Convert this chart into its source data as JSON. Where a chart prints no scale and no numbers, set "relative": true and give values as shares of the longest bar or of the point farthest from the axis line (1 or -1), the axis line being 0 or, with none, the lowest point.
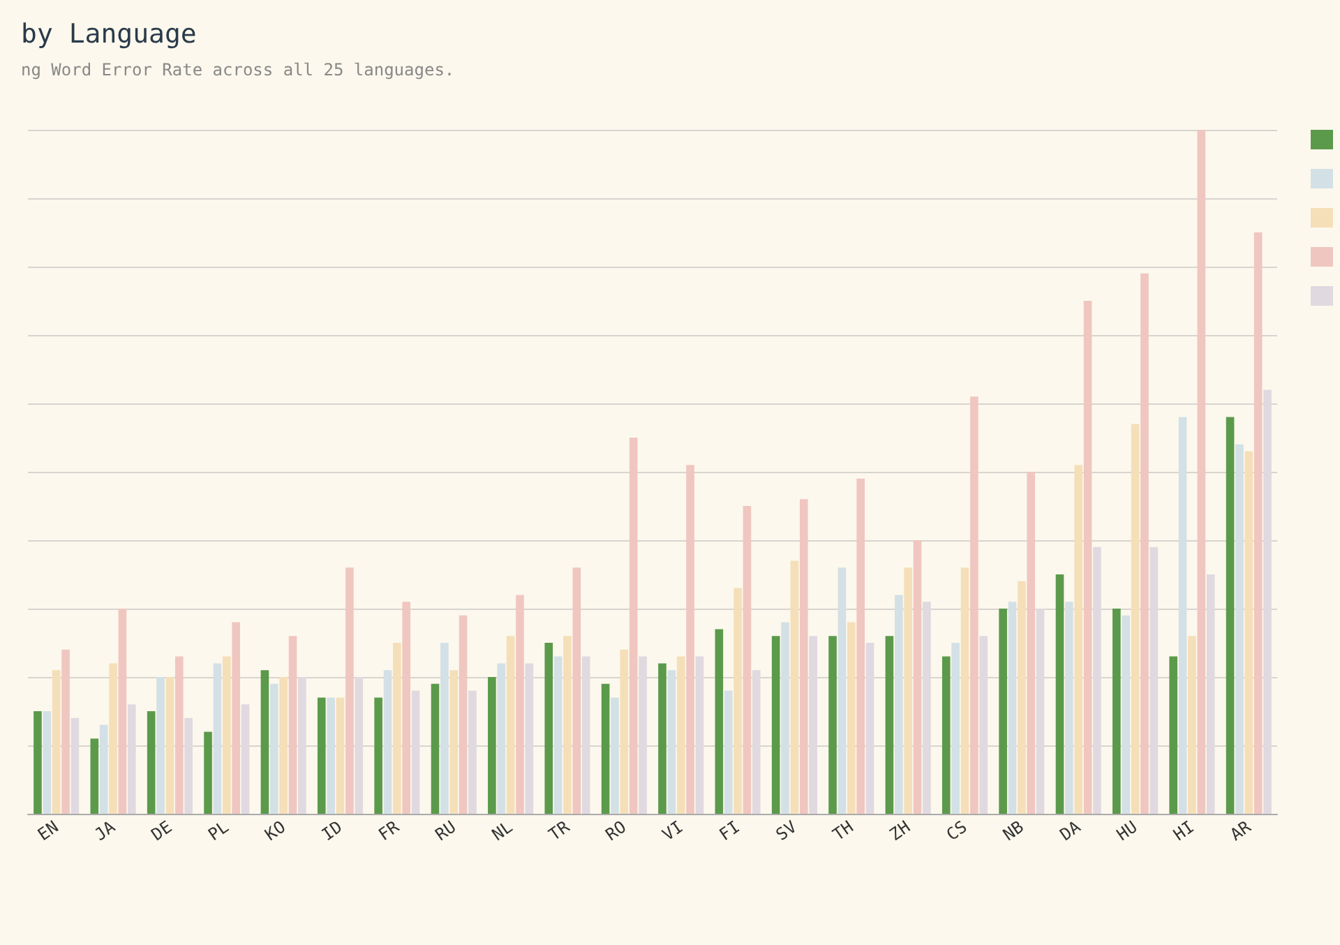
{
  "chart_data": {
    "type": "bar",
    "title": "by Language",
    "subtitle": "ng Word Error Rate across all 25 languages.",
    "categories": [
      "EN",
      "JA",
      "DE",
      "PL",
      "KO",
      "ID",
      "FR",
      "RU",
      "NL",
      "TR",
      "RO",
      "VI",
      "FI",
      "SV",
      "TH",
      "ZH",
      "CS",
      "NB",
      "DA",
      "HU",
      "HI",
      "AR"
    ],
    "relative": true,
    "grid": "y",
    "series": [
      {
        "color": "#5b9a4b",
        "values": [
          0.15,
          0.11,
          0.15,
          0.12,
          0.21,
          0.17,
          0.17,
          0.19,
          0.2,
          0.25,
          0.19,
          0.22,
          0.27,
          0.26,
          0.26,
          0.26,
          0.23,
          0.3,
          0.35,
          0.3,
          0.23,
          0.58
        ]
      },
      {
        "color": "#d3e0e6",
        "values": [
          0.15,
          0.13,
          0.2,
          0.22,
          0.19,
          0.17,
          0.21,
          0.25,
          0.22,
          0.23,
          0.17,
          0.21,
          0.18,
          0.28,
          0.36,
          0.32,
          0.25,
          0.31,
          0.31,
          0.29,
          0.58,
          0.54
        ]
      },
      {
        "color": "#f5dfb8",
        "values": [
          0.21,
          0.22,
          0.2,
          0.23,
          0.2,
          0.17,
          0.25,
          0.21,
          0.26,
          0.26,
          0.24,
          0.23,
          0.33,
          0.37,
          0.28,
          0.36,
          0.36,
          0.34,
          0.51,
          0.57,
          0.26,
          0.53
        ]
      },
      {
        "color": "#f0c6c0",
        "values": [
          0.24,
          0.3,
          0.23,
          0.28,
          0.26,
          0.36,
          0.31,
          0.29,
          0.32,
          0.36,
          0.55,
          0.51,
          0.45,
          0.46,
          0.49,
          0.4,
          0.61,
          0.5,
          0.75,
          0.79,
          1,
          0.85
        ]
      },
      {
        "color": "#e0d9e0",
        "values": [
          0.14,
          0.16,
          0.14,
          0.16,
          0.2,
          0.2,
          0.18,
          0.18,
          0.22,
          0.23,
          0.23,
          0.23,
          0.21,
          0.26,
          0.25,
          0.31,
          0.26,
          0.3,
          0.39,
          0.39,
          0.35,
          0.62
        ]
      }
    ]
  }
}
